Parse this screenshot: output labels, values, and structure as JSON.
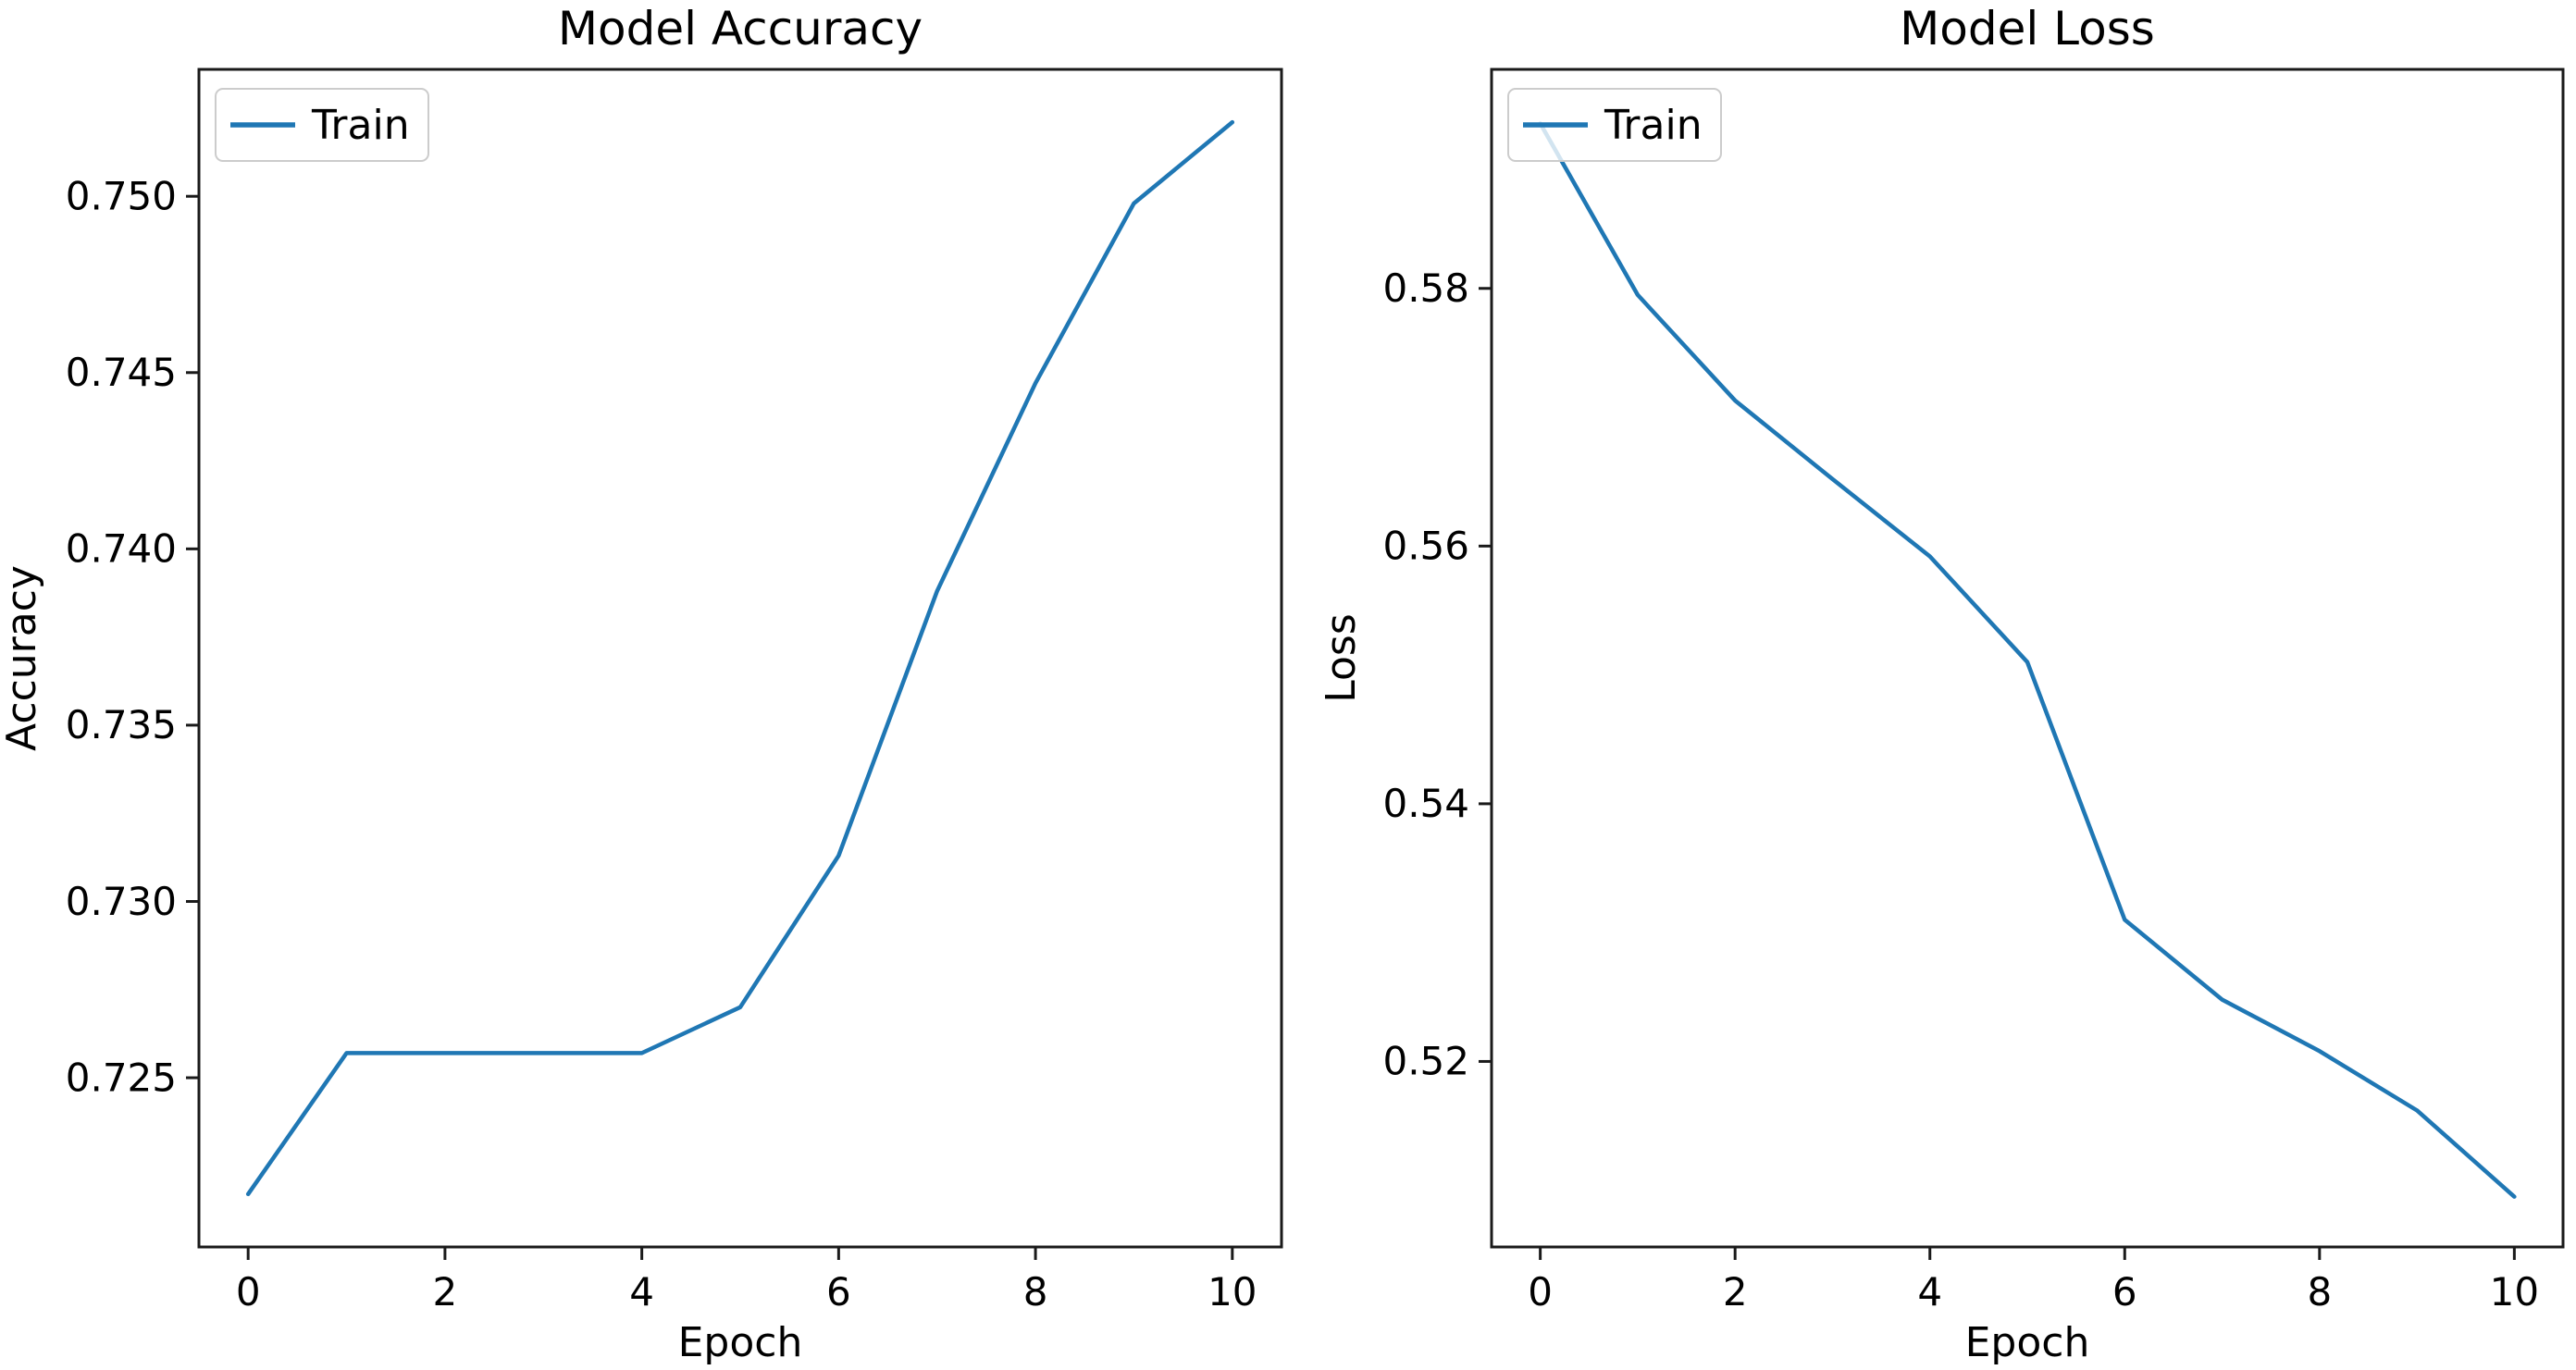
{
  "figure": {
    "background": "#ffffff",
    "spine_color": "#1a1a1a",
    "text_color": "#000000",
    "legend_border_color": "#cccccc",
    "legend_fill_opacity": 0.8
  },
  "chart_data": [
    {
      "id": "accuracy",
      "type": "line",
      "title": "Model Accuracy",
      "xlabel": "Epoch",
      "ylabel": "Accuracy",
      "xlim": [
        -0.5,
        10.5
      ],
      "ylim": [
        0.7202,
        0.7536
      ],
      "grid": false,
      "legend": {
        "position": "upper-left",
        "entries": [
          {
            "label": "Train",
            "color": "#1f77b4"
          }
        ]
      },
      "xticks": {
        "values": [
          0,
          2,
          4,
          6,
          8,
          10
        ],
        "labels": [
          "0",
          "2",
          "4",
          "6",
          "8",
          "10"
        ]
      },
      "yticks": {
        "values": [
          0.725,
          0.73,
          0.735,
          0.74,
          0.745,
          0.75
        ],
        "labels": [
          "0.725",
          "0.730",
          "0.735",
          "0.740",
          "0.745",
          "0.750"
        ]
      },
      "series": [
        {
          "name": "Train",
          "color": "#1f77b4",
          "x": [
            0,
            1,
            2,
            3,
            4,
            5,
            6,
            7,
            8,
            9,
            10
          ],
          "y": [
            0.7217,
            0.7257,
            0.7257,
            0.7257,
            0.7257,
            0.727,
            0.7313,
            0.7388,
            0.7447,
            0.7498,
            0.7521
          ]
        }
      ]
    },
    {
      "id": "loss",
      "type": "line",
      "title": "Model Loss",
      "xlabel": "Epoch",
      "ylabel": "Loss",
      "xlim": [
        -0.5,
        10.5
      ],
      "ylim": [
        0.5056,
        0.597
      ],
      "grid": false,
      "legend": {
        "position": "upper-left",
        "entries": [
          {
            "label": "Train",
            "color": "#1f77b4"
          }
        ]
      },
      "xticks": {
        "values": [
          0,
          2,
          4,
          6,
          8,
          10
        ],
        "labels": [
          "0",
          "2",
          "4",
          "6",
          "8",
          "10"
        ]
      },
      "yticks": {
        "values": [
          0.52,
          0.54,
          0.56,
          0.58
        ],
        "labels": [
          "0.52",
          "0.54",
          "0.56",
          "0.58"
        ]
      },
      "series": [
        {
          "name": "Train",
          "color": "#1f77b4",
          "x": [
            0,
            1,
            2,
            3,
            4,
            5,
            6,
            7,
            8,
            9,
            10
          ],
          "y": [
            0.5928,
            0.5795,
            0.5713,
            0.5652,
            0.5592,
            0.551,
            0.531,
            0.5248,
            0.5208,
            0.5162,
            0.5095
          ]
        }
      ]
    }
  ]
}
